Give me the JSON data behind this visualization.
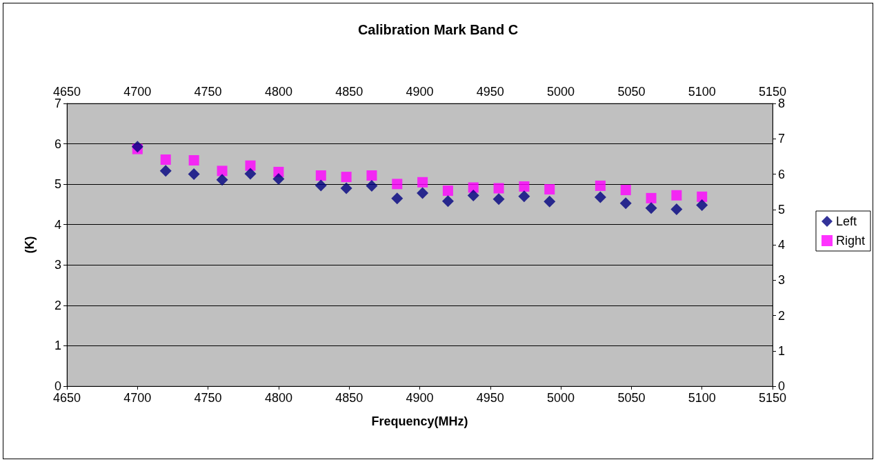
{
  "chart_data": {
    "type": "scatter",
    "title": "Calibration Mark Band C",
    "xlabel": "Frequency(MHz)",
    "ylabel": "(K)",
    "x": [
      4700,
      4720,
      4740,
      4760,
      4780,
      4800,
      4830,
      4848,
      4866,
      4884,
      4902,
      4920,
      4938,
      4956,
      4974,
      4992,
      5028,
      5046,
      5064,
      5082,
      5100
    ],
    "series": [
      {
        "name": "Left",
        "color": "#000080",
        "marker": "diamond",
        "values": [
          5.93,
          5.33,
          5.25,
          5.11,
          5.26,
          5.13,
          4.97,
          4.9,
          4.96,
          4.65,
          4.78,
          4.58,
          4.72,
          4.63,
          4.7,
          4.57,
          4.68,
          4.53,
          4.41,
          4.38,
          4.48
        ]
      },
      {
        "name": "Right",
        "color": "#ff00ff",
        "marker": "square",
        "axis": "y2",
        "values": [
          6.71,
          6.41,
          6.39,
          6.09,
          6.24,
          6.06,
          5.96,
          5.92,
          5.96,
          5.72,
          5.77,
          5.53,
          5.62,
          5.6,
          5.65,
          5.57,
          5.67,
          5.55,
          5.32,
          5.4,
          5.36
        ]
      }
    ],
    "xlim": [
      4650,
      5150
    ],
    "xticks": [
      4650,
      4700,
      4750,
      4800,
      4850,
      4900,
      4950,
      5000,
      5050,
      5100,
      5150
    ],
    "x2lim": [
      4650,
      5150
    ],
    "x2ticks": [
      4650,
      4700,
      4750,
      4800,
      4850,
      4900,
      4950,
      5000,
      5050,
      5100,
      5150
    ],
    "ylim": [
      0,
      7
    ],
    "yticks": [
      0,
      1,
      2,
      3,
      4,
      5,
      6,
      7
    ],
    "y2lim": [
      0,
      8
    ],
    "y2ticks": [
      0,
      1,
      2,
      3,
      4,
      5,
      6,
      7,
      8
    ],
    "grid": "y",
    "legend": "right"
  }
}
